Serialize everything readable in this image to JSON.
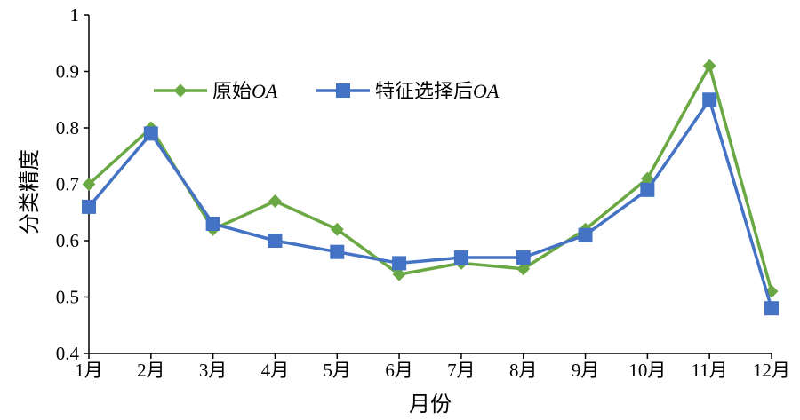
{
  "chart_data": {
    "type": "line",
    "categories": [
      "1月",
      "2月",
      "3月",
      "4月",
      "5月",
      "6月",
      "7月",
      "8月",
      "9月",
      "10月",
      "11月",
      "12月"
    ],
    "series": [
      {
        "name_prefix": "原始",
        "name_suffix": "OA",
        "color": "#6aa843",
        "marker": "diamond",
        "values": [
          0.7,
          0.8,
          0.62,
          0.67,
          0.62,
          0.54,
          0.56,
          0.55,
          0.62,
          0.71,
          0.91,
          0.51
        ]
      },
      {
        "name_prefix": "特征选择后",
        "name_suffix": "OA",
        "color": "#4472c4",
        "marker": "square",
        "values": [
          0.66,
          0.79,
          0.63,
          0.6,
          0.58,
          0.56,
          0.57,
          0.57,
          0.61,
          0.69,
          0.85,
          0.48
        ]
      }
    ],
    "xlabel": "月份",
    "ylabel": "分类精度",
    "ylim": [
      0.4,
      1.0
    ],
    "yticks": [
      "0.4",
      "0.5",
      "0.6",
      "0.7",
      "0.8",
      "0.9",
      "1"
    ],
    "grid": false,
    "legend_position": "top-left"
  }
}
